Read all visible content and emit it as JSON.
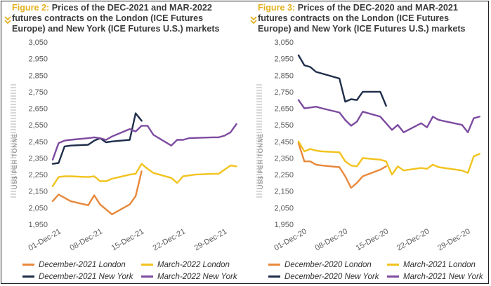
{
  "colors": {
    "london_dec": "#e8883a",
    "london_mar": "#f2c31e",
    "ny_dec": "#1e2d4a",
    "ny_mar": "#7d4ba0",
    "figure_label": "#e2b020",
    "axis_text": "#5a5a5a",
    "gridline": "#e2e2e2",
    "watermark": "#c8c8c8"
  },
  "icons": {
    "title_marker": "double-chevron-down-icon"
  },
  "charts": [
    {
      "title_prefix": "Figure 2:",
      "title_text": "Prices of the DEC-2021 and MAR-2022 futures contracts on the London (ICE Futures Europe) and New York (ICE Futures U.S.) markets",
      "legend": [
        "December-2021 London",
        "March-2022 London",
        "December-2021 New York",
        "March-2022 New York"
      ]
    },
    {
      "title_prefix": "Figure 3:",
      "title_text": "Prices of the DEC-2020 and MAR-2021 futures contracts on the London (ICE Futures Europe) and New York (ICE Futures U.S.) markets",
      "legend": [
        "December-2020 London",
        "March-2021 London",
        "December-2020 New York",
        "March-2021 New York"
      ]
    }
  ],
  "chart_data": [
    {
      "type": "line",
      "title": "Prices of the DEC-2021 and MAR-2022 futures contracts on the London (ICE Futures Europe) and New York (ICE Futures U.S.) markets",
      "ylabel": "US$ PER TONNE",
      "xlabel": "",
      "ylim": [
        1950,
        3050
      ],
      "yticks": [
        "3,050",
        "2,950",
        "2,850",
        "2,750",
        "2,650",
        "2,550",
        "2,450",
        "2,350",
        "2,250",
        "2,150",
        "2,050",
        "1,950"
      ],
      "xlim": [
        "2021-11-30",
        "2022-01-01"
      ],
      "xticks": [
        {
          "date": "2021-12-01",
          "label": "01-Dec-21"
        },
        {
          "date": "2021-12-08",
          "label": "08-Dec-21"
        },
        {
          "date": "2021-12-15",
          "label": "15-Dec-21"
        },
        {
          "date": "2021-12-22",
          "label": "22-Dec-21"
        },
        {
          "date": "2021-12-29",
          "label": "29-Dec-21"
        }
      ],
      "grid": false,
      "series": [
        {
          "name": "December-2021 London",
          "color_key": "london_dec",
          "x": [
            "2021-11-30",
            "2021-12-01",
            "2021-12-02",
            "2021-12-03",
            "2021-12-06",
            "2021-12-07",
            "2021-12-08",
            "2021-12-09",
            "2021-12-10",
            "2021-12-13",
            "2021-12-14",
            "2021-12-15"
          ],
          "y": [
            2090,
            2130,
            2110,
            2090,
            2065,
            2125,
            2070,
            2040,
            2010,
            2070,
            2120,
            2270
          ]
        },
        {
          "name": "March-2022 London",
          "color_key": "london_mar",
          "x": [
            "2021-11-30",
            "2021-12-01",
            "2021-12-02",
            "2021-12-03",
            "2021-12-06",
            "2021-12-07",
            "2021-12-08",
            "2021-12-09",
            "2021-12-10",
            "2021-12-13",
            "2021-12-14",
            "2021-12-15",
            "2021-12-16",
            "2021-12-17",
            "2021-12-20",
            "2021-12-21",
            "2021-12-22",
            "2021-12-23",
            "2021-12-24",
            "2021-12-27",
            "2021-12-28",
            "2021-12-29",
            "2021-12-30",
            "2021-12-31"
          ],
          "y": [
            2180,
            2235,
            2240,
            2240,
            2235,
            2240,
            2210,
            2210,
            2225,
            2250,
            2255,
            2315,
            2285,
            2260,
            2230,
            2200,
            2240,
            2245,
            2250,
            2255,
            2255,
            2280,
            2305,
            2300
          ]
        },
        {
          "name": "December-2021 New York",
          "color_key": "ny_dec",
          "x": [
            "2021-11-30",
            "2021-12-01",
            "2021-12-02",
            "2021-12-03",
            "2021-12-06",
            "2021-12-07",
            "2021-12-08",
            "2021-12-09",
            "2021-12-10",
            "2021-12-13",
            "2021-12-14",
            "2021-12-15"
          ],
          "y": [
            2315,
            2320,
            2420,
            2425,
            2430,
            2455,
            2470,
            2445,
            2450,
            2460,
            2620,
            2575
          ]
        },
        {
          "name": "March-2022 New York",
          "color_key": "ny_mar",
          "x": [
            "2021-11-30",
            "2021-12-01",
            "2021-12-02",
            "2021-12-03",
            "2021-12-06",
            "2021-12-07",
            "2021-12-08",
            "2021-12-09",
            "2021-12-10",
            "2021-12-13",
            "2021-12-14",
            "2021-12-15",
            "2021-12-16",
            "2021-12-17",
            "2021-12-20",
            "2021-12-21",
            "2021-12-22",
            "2021-12-23",
            "2021-12-27",
            "2021-12-28",
            "2021-12-29",
            "2021-12-30",
            "2021-12-31"
          ],
          "y": [
            2340,
            2440,
            2455,
            2460,
            2470,
            2475,
            2470,
            2460,
            2480,
            2525,
            2510,
            2545,
            2545,
            2490,
            2425,
            2460,
            2460,
            2470,
            2475,
            2475,
            2485,
            2505,
            2555
          ]
        }
      ]
    },
    {
      "type": "line",
      "title": "Prices of the DEC-2020 and MAR-2021 futures contracts on the London (ICE Futures Europe) and New York (ICE Futures U.S.) markets",
      "ylabel": "US$ PER TONNE",
      "xlabel": "",
      "ylim": [
        1950,
        3050
      ],
      "yticks": [
        "3,050",
        "2,950",
        "2,850",
        "2,750",
        "2,650",
        "2,550",
        "2,450",
        "2,350",
        "2,250",
        "2,150",
        "2,050",
        "1,950"
      ],
      "xlim": [
        "2020-11-30",
        "2021-01-01"
      ],
      "xticks": [
        {
          "date": "2020-12-01",
          "label": "01-Dec-20"
        },
        {
          "date": "2020-12-08",
          "label": "08-Dec-20"
        },
        {
          "date": "2020-12-15",
          "label": "15-Dec-20"
        },
        {
          "date": "2020-12-22",
          "label": "22-Dec-20"
        },
        {
          "date": "2020-12-29",
          "label": "29-Dec-20"
        }
      ],
      "grid": false,
      "series": [
        {
          "name": "December-2020 London",
          "color_key": "london_dec",
          "x": [
            "2020-11-30",
            "2020-12-01",
            "2020-12-02",
            "2020-12-03",
            "2020-12-04",
            "2020-12-07",
            "2020-12-08",
            "2020-12-09",
            "2020-12-10",
            "2020-12-11",
            "2020-12-14",
            "2020-12-15"
          ],
          "y": [
            2440,
            2330,
            2330,
            2310,
            2305,
            2295,
            2240,
            2170,
            2200,
            2240,
            2280,
            2300
          ]
        },
        {
          "name": "March-2021 London",
          "color_key": "london_mar",
          "x": [
            "2020-11-30",
            "2020-12-01",
            "2020-12-02",
            "2020-12-03",
            "2020-12-04",
            "2020-12-07",
            "2020-12-08",
            "2020-12-09",
            "2020-12-10",
            "2020-12-11",
            "2020-12-14",
            "2020-12-15",
            "2020-12-16",
            "2020-12-17",
            "2020-12-18",
            "2020-12-21",
            "2020-12-22",
            "2020-12-23",
            "2020-12-24",
            "2020-12-28",
            "2020-12-29",
            "2020-12-30",
            "2020-12-31"
          ],
          "y": [
            2450,
            2390,
            2405,
            2395,
            2390,
            2385,
            2330,
            2305,
            2300,
            2350,
            2340,
            2330,
            2250,
            2300,
            2275,
            2290,
            2285,
            2310,
            2295,
            2275,
            2260,
            2360,
            2375
          ]
        },
        {
          "name": "December-2020 New York",
          "color_key": "ny_dec",
          "x": [
            "2020-11-30",
            "2020-12-01",
            "2020-12-02",
            "2020-12-03",
            "2020-12-04",
            "2020-12-07",
            "2020-12-08",
            "2020-12-09",
            "2020-12-10",
            "2020-12-11",
            "2020-12-14",
            "2020-12-15"
          ],
          "y": [
            2970,
            2910,
            2900,
            2870,
            2860,
            2830,
            2690,
            2705,
            2700,
            2750,
            2750,
            2665
          ]
        },
        {
          "name": "March-2021 New York",
          "color_key": "ny_mar",
          "x": [
            "2020-11-30",
            "2020-12-01",
            "2020-12-02",
            "2020-12-03",
            "2020-12-04",
            "2020-12-07",
            "2020-12-08",
            "2020-12-09",
            "2020-12-10",
            "2020-12-11",
            "2020-12-14",
            "2020-12-15",
            "2020-12-16",
            "2020-12-17",
            "2020-12-18",
            "2020-12-21",
            "2020-12-22",
            "2020-12-23",
            "2020-12-24",
            "2020-12-28",
            "2020-12-29",
            "2020-12-30",
            "2020-12-31"
          ],
          "y": [
            2700,
            2650,
            2655,
            2660,
            2650,
            2625,
            2580,
            2545,
            2570,
            2630,
            2600,
            2560,
            2520,
            2550,
            2505,
            2560,
            2535,
            2600,
            2580,
            2550,
            2505,
            2590,
            2600
          ]
        }
      ]
    }
  ]
}
